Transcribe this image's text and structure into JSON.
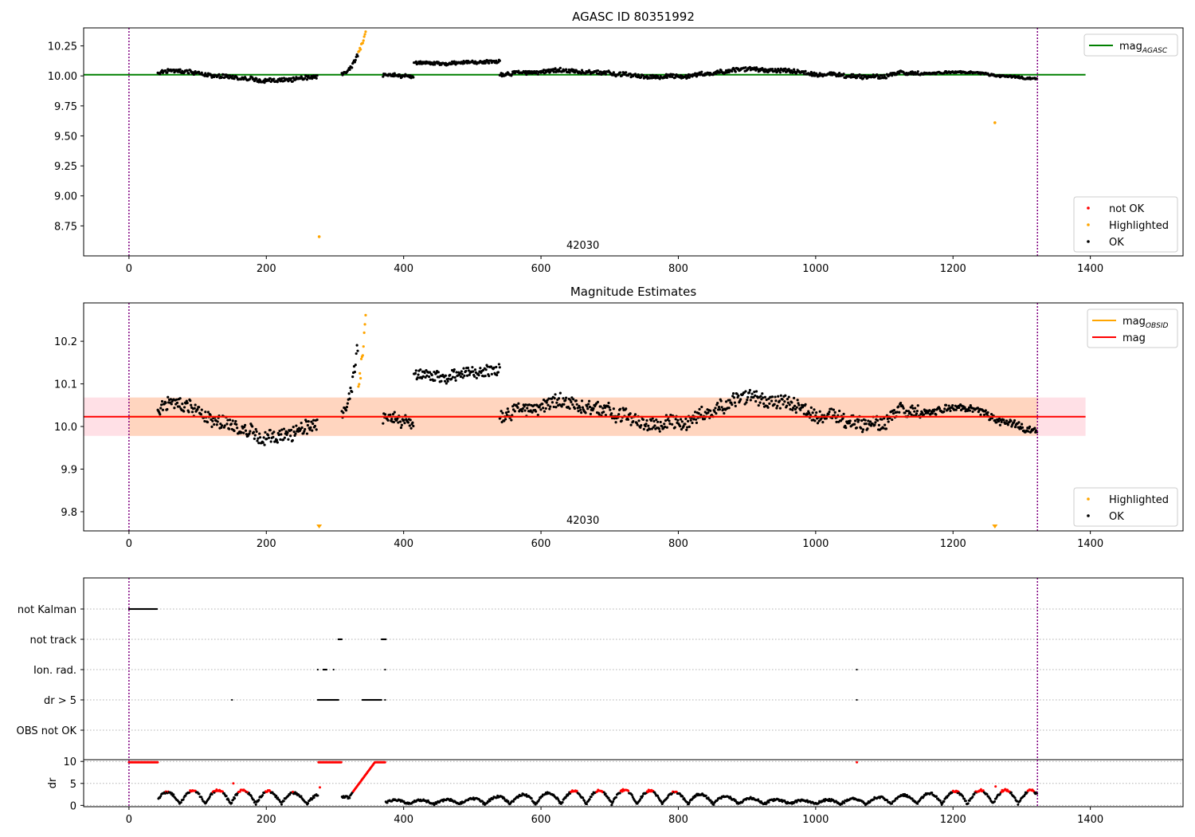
{
  "figure": {
    "background": "#ffffff"
  },
  "chart_data": [
    {
      "type": "scatter",
      "title": "AGASC ID 80351992",
      "xlim": [
        -66,
        1535
      ],
      "ylim": [
        8.5,
        10.4
      ],
      "xticks": [
        0,
        200,
        400,
        600,
        800,
        1000,
        1200,
        1400
      ],
      "xtick_labels": [
        "0",
        "200",
        "400",
        "600",
        "800",
        "1000",
        "1200",
        "1400"
      ],
      "yticks": [
        8.75,
        9.0,
        9.25,
        9.5,
        9.75,
        10.0,
        10.25
      ],
      "ytick_labels": [
        "8.75",
        "9.00",
        "9.25",
        "9.50",
        "9.75",
        "10.00",
        "10.25"
      ],
      "obs_boundaries": [
        0,
        1323
      ],
      "obsid_label": {
        "text": "42030",
        "x": 661
      },
      "reference_lines": [
        {
          "name": "mag",
          "subscript": "AGASC",
          "y": 10.01,
          "x": [
            -66,
            1393
          ],
          "color": "#008000"
        }
      ],
      "series_legend": [
        {
          "name": "mag",
          "subscript": "AGASC",
          "color": "#008000",
          "kind": "line"
        }
      ],
      "point_legend": [
        {
          "name": "not OK",
          "color": "#ff0000"
        },
        {
          "name": "Highlighted",
          "color": "#ffa500"
        },
        {
          "name": "OK",
          "color": "#000000"
        }
      ],
      "highlighted_points": [
        [
          277,
          8.66
        ],
        [
          1261,
          9.61
        ]
      ],
      "segments": [
        {
          "x0": 42,
          "x1": 275,
          "base": 10.0,
          "trend": 0.0,
          "noise": 0.02
        },
        {
          "x0": 310,
          "x1": 345,
          "base": 10.02,
          "trend": 0.35,
          "noise": 0.02,
          "orange_from": 334
        },
        {
          "x0": 370,
          "x1": 415,
          "base": 10.0,
          "trend": -0.02,
          "noise": 0.015
        },
        {
          "x0": 415,
          "x1": 540,
          "base": 10.11,
          "trend": 0.02,
          "noise": 0.015
        },
        {
          "x0": 540,
          "x1": 1150,
          "base": 10.02,
          "trend": 0.0,
          "noise": 0.02
        },
        {
          "x0": 1150,
          "x1": 1323,
          "base": 10.0,
          "trend": 0.0,
          "noise": 0.01
        }
      ]
    },
    {
      "type": "scatter",
      "title": "Magnitude Estimates",
      "xlim": [
        -66,
        1535
      ],
      "ylim": [
        9.755,
        10.29
      ],
      "xticks": [
        0,
        200,
        400,
        600,
        800,
        1000,
        1200,
        1400
      ],
      "xtick_labels": [
        "0",
        "200",
        "400",
        "600",
        "800",
        "1000",
        "1200",
        "1400"
      ],
      "yticks": [
        9.8,
        9.9,
        10.0,
        10.1,
        10.2
      ],
      "ytick_labels": [
        "9.8",
        "9.9",
        "10.0",
        "10.1",
        "10.2"
      ],
      "obs_boundaries": [
        0,
        1323
      ],
      "obsid_label": {
        "text": "42030",
        "x": 661
      },
      "mag_line": {
        "y": 10.023,
        "band": [
          9.978,
          10.068
        ],
        "x": [
          -66,
          1393
        ],
        "color": "#ff0000",
        "band_color": "#ffe0e6"
      },
      "mag_obsid": {
        "y": 10.023,
        "band": [
          9.978,
          10.068
        ],
        "x": [
          0,
          1323
        ],
        "color": "#ffa500",
        "band_color": "#ffd5bf"
      },
      "series_legend": [
        {
          "name": "mag",
          "subscript": "OBSID",
          "color": "#ffa500",
          "kind": "line"
        },
        {
          "name": "mag",
          "subscript": "",
          "color": "#ff0000",
          "kind": "line"
        }
      ],
      "point_legend": [
        {
          "name": "Highlighted",
          "color": "#ffa500"
        },
        {
          "name": "OK",
          "color": "#000000"
        }
      ],
      "offscale_markers": [
        277,
        1261
      ]
    },
    {
      "type": "scatter",
      "title": "",
      "xlim": [
        -66,
        1535
      ],
      "xticks": [
        0,
        200,
        400,
        600,
        800,
        1000,
        1200,
        1400
      ],
      "xtick_labels": [
        "0",
        "200",
        "400",
        "600",
        "800",
        "1000",
        "1200",
        "1400"
      ],
      "obs_boundaries": [
        0,
        1323
      ],
      "flag_rows": [
        {
          "label": "not Kalman",
          "ranges": [
            [
              0,
              42
            ]
          ]
        },
        {
          "label": "not track",
          "ranges": [
            [
              305,
              310
            ],
            [
              368,
              374
            ]
          ]
        },
        {
          "label": "Ion. rad.",
          "ranges": [
            [
              275,
              276
            ],
            [
              283,
              288
            ],
            [
              298,
              299
            ],
            [
              373,
              374
            ],
            [
              1060,
              1061
            ]
          ]
        },
        {
          "label": "dr > 5",
          "ranges": [
            [
              150,
              151
            ],
            [
              275,
              305
            ],
            [
              340,
              368
            ],
            [
              373,
              374
            ],
            [
              1060,
              1061
            ]
          ]
        },
        {
          "label": "OBS not OK",
          "ranges": []
        }
      ],
      "dr": {
        "ylabel": "dr",
        "ylim": [
          -0.3,
          10.4
        ],
        "yticks": [
          0,
          5,
          10
        ],
        "ytick_labels": [
          "0",
          "5",
          "10"
        ],
        "threshold": 3,
        "capped_ranges": [
          [
            0,
            42
          ],
          [
            275,
            310
          ],
          [
            358,
            374
          ]
        ],
        "ramp": {
          "x0": 322,
          "x1": 358,
          "y0": 2.2,
          "y1": 9.8
        },
        "spikes": [
          [
            152,
            5.0
          ],
          [
            278,
            4.1
          ],
          [
            1060,
            9.8
          ],
          [
            1262,
            4.3
          ]
        ]
      }
    }
  ]
}
